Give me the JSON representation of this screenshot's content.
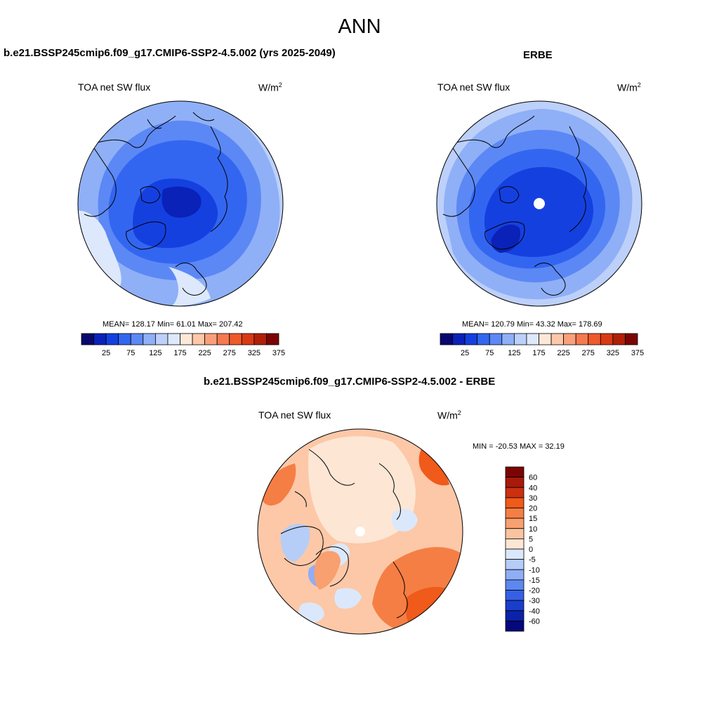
{
  "main_title": "ANN",
  "panels": [
    {
      "title": "b.e21.BSSP245cmip6.f09_g17.CMIP6-SSP2-4.5.002 (yrs 2025-2049)",
      "subtitle": "TOA net SW flux",
      "units_base": "W/m",
      "units_exp": "2",
      "stats": "MEAN= 128.17  Min=  61.01  Max= 207.42",
      "colorbar_labels": [
        "25",
        "75",
        "125",
        "175",
        "225",
        "275",
        "325",
        "375"
      ]
    },
    {
      "title": "ERBE",
      "subtitle": "TOA net SW flux",
      "units_base": "W/m",
      "units_exp": "2",
      "stats": "MEAN= 120.79  Min=  43.32  Max= 178.69",
      "colorbar_labels": [
        "25",
        "75",
        "125",
        "175",
        "225",
        "275",
        "325",
        "375"
      ]
    },
    {
      "title": "b.e21.BSSP245cmip6.f09_g17.CMIP6-SSP2-4.5.002 - ERBE",
      "subtitle": "TOA net SW flux",
      "units_base": "W/m",
      "units_exp": "2",
      "stats": "MIN = -20.53 MAX =  32.19",
      "colorbar_labels": [
        "60",
        "40",
        "30",
        "20",
        "15",
        "10",
        "5",
        "0",
        "-5",
        "-10",
        "-15",
        "-20",
        "-30",
        "-40",
        "-60"
      ]
    }
  ],
  "colors": {
    "abs_scale": [
      "#08086e",
      "#0a22b8",
      "#1540e0",
      "#3366f0",
      "#5c88f5",
      "#8fb0f7",
      "#bcd0fa",
      "#dde8fc",
      "#fde8d8",
      "#fcc8a8",
      "#f9a07a",
      "#f57a50",
      "#ee5a2a",
      "#d83a14",
      "#b02008",
      "#7c0404"
    ],
    "diff_scale": [
      "#7c0404",
      "#a81a0a",
      "#cc3010",
      "#f05a1a",
      "#f57e44",
      "#f8a070",
      "#fbc4a0",
      "#fde6d4",
      "#dbe8fb",
      "#b6cdf8",
      "#8faef5",
      "#5c88f0",
      "#3560e6",
      "#1a3ecc",
      "#0c22a8",
      "#04087a"
    ]
  }
}
